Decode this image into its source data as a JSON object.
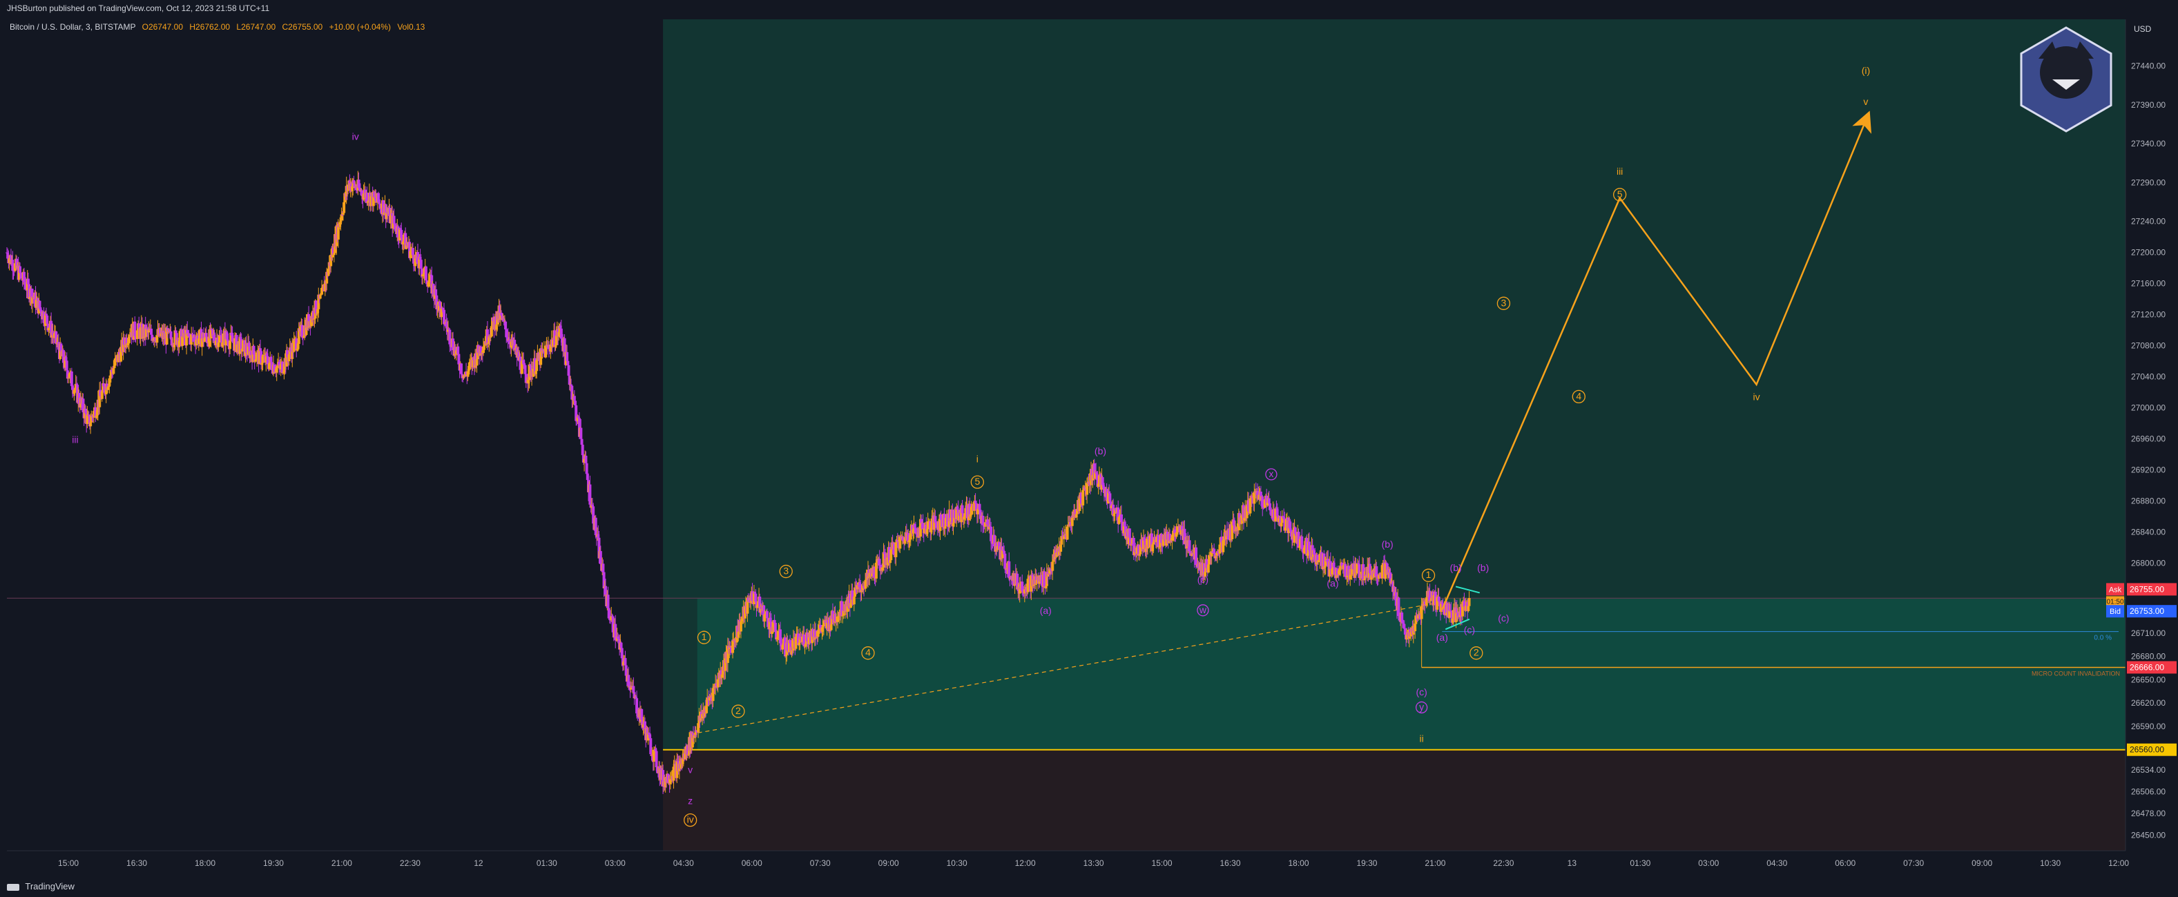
{
  "header": {
    "publisher": "JHSBurton published on TradingView.com, Oct 12, 2023 21:58 UTC+11"
  },
  "legend": {
    "symbol": "Bitcoin / U.S. Dollar, 3, BITSTAMP",
    "open": "O26747.00",
    "high": "H26762.00",
    "low": "L26747.00",
    "close": "C26755.00",
    "change": "+10.00 (+0.04%)",
    "volume": "Vol0.13"
  },
  "footer": {
    "brand": "TradingView"
  },
  "axis": {
    "currency": "USD",
    "ask_label": "Ask",
    "bid_label": "Bid",
    "ask_price": "26755.00",
    "bid_price": "26753.00",
    "countdown": "01:50",
    "stop_price": "26666.00",
    "support_price": "26560.00",
    "small_level_label": "0.0 %",
    "invalidation_label": "MICRO COUNT INVALIDATION"
  },
  "colors": {
    "background": "#131722",
    "bull_candle": "#f7a21b",
    "bear_candle": "#c239e6",
    "projection": "#f7a21b",
    "zone_top": "#123532",
    "zone_bottom": "#0f4a40",
    "zone_below": "#241c22",
    "ask": "#f23645",
    "bid": "#2962ff",
    "support_line": "#f7c600"
  },
  "chart_data": {
    "type": "candlestick",
    "symbol": "Bitcoin / U.S. Dollar",
    "interval": "3",
    "exchange": "BITSTAMP",
    "ylim": [
      26430,
      27500
    ],
    "y_ticks": [
      26450,
      26478,
      26506,
      26534,
      26560,
      26590,
      26620,
      26650,
      26680,
      26710,
      26740,
      26770,
      26800,
      26840,
      26880,
      26920,
      26960,
      27000,
      27040,
      27080,
      27120,
      27160,
      27200,
      27240,
      27290,
      27340,
      27390,
      27440
    ],
    "x_ticks": [
      "15:00",
      "16:30",
      "18:00",
      "19:30",
      "21:00",
      "22:30",
      "12",
      "01:30",
      "03:00",
      "04:30",
      "06:00",
      "07:30",
      "09:00",
      "10:30",
      "12:00",
      "13:30",
      "15:00",
      "16:30",
      "18:00",
      "19:30",
      "21:00",
      "22:30",
      "13",
      "01:30",
      "03:00",
      "04:30",
      "06:00",
      "07:30",
      "09:00",
      "10:30",
      "12:00"
    ],
    "price_path": [
      [
        0,
        27200
      ],
      [
        0.6,
        27110
      ],
      [
        1.2,
        26980
      ],
      [
        1.8,
        27100
      ],
      [
        2.4,
        27090
      ],
      [
        3.2,
        27090
      ],
      [
        4.0,
        27050
      ],
      [
        4.6,
        27140
      ],
      [
        5.0,
        27290
      ],
      [
        5.5,
        27260
      ],
      [
        6.2,
        27160
      ],
      [
        6.7,
        27040
      ],
      [
        7.2,
        27120
      ],
      [
        7.6,
        27040
      ],
      [
        8.1,
        27100
      ],
      [
        8.4,
        26960
      ],
      [
        8.8,
        26740
      ],
      [
        9.2,
        26620
      ],
      [
        9.6,
        26520
      ],
      [
        9.85,
        26540
      ],
      [
        10.4,
        26650
      ],
      [
        10.9,
        26760
      ],
      [
        11.4,
        26690
      ],
      [
        12.0,
        26720
      ],
      [
        12.6,
        26780
      ],
      [
        13.2,
        26840
      ],
      [
        14.2,
        26870
      ],
      [
        14.8,
        26770
      ],
      [
        15.2,
        26780
      ],
      [
        15.9,
        26920
      ],
      [
        16.5,
        26820
      ],
      [
        17.2,
        26840
      ],
      [
        17.5,
        26790
      ],
      [
        18.3,
        26890
      ],
      [
        18.9,
        26830
      ],
      [
        19.4,
        26790
      ],
      [
        20.2,
        26790
      ],
      [
        20.5,
        26700
      ],
      [
        20.8,
        26760
      ],
      [
        21.2,
        26730
      ],
      [
        21.4,
        26752
      ]
    ],
    "projection": {
      "x": [
        21.0,
        23.6,
        25.6,
        27.2
      ],
      "y": [
        26740,
        27270,
        27030,
        27370
      ]
    },
    "levels": {
      "current": 26755,
      "bid": 26753,
      "small_level": 26712,
      "invalidation": 26666,
      "support": 26560
    },
    "wave_labels_orange": [
      {
        "t": "iii",
        "x": 23.6,
        "y": 27300
      },
      {
        "t": "(i)",
        "x": 27.2,
        "y": 27430
      },
      {
        "t": "v",
        "x": 27.2,
        "y": 27390
      },
      {
        "t": "iv",
        "x": 25.6,
        "y": 27010
      },
      {
        "t": "i",
        "x": 14.2,
        "y": 26930
      },
      {
        "t": "ii",
        "x": 20.7,
        "y": 26570
      },
      {
        "t": "3",
        "x": 21.9,
        "y": 27130
      },
      {
        "t": "4",
        "x": 23.0,
        "y": 27010
      },
      {
        "t": "5",
        "x": 23.6,
        "y": 27270
      },
      {
        "t": "5",
        "x": 14.2,
        "y": 26900
      },
      {
        "t": "3",
        "x": 11.4,
        "y": 26785
      },
      {
        "t": "1",
        "x": 10.2,
        "y": 26700
      },
      {
        "t": "2",
        "x": 10.7,
        "y": 26605
      },
      {
        "t": "4",
        "x": 12.6,
        "y": 26680
      },
      {
        "t": "1",
        "x": 20.8,
        "y": 26780
      },
      {
        "t": "2",
        "x": 21.5,
        "y": 26680
      },
      {
        "t": "iv",
        "x": 10.0,
        "y": 26465
      }
    ],
    "wave_labels_purple": [
      {
        "t": "iv",
        "x": 5.1,
        "y": 27345
      },
      {
        "t": "iii",
        "x": 1.0,
        "y": 26955
      },
      {
        "t": "v",
        "x": 10.0,
        "y": 26530
      },
      {
        "t": "z",
        "x": 10.0,
        "y": 26490
      },
      {
        "t": "(a)",
        "x": 15.2,
        "y": 26735
      },
      {
        "t": "(b)",
        "x": 16.0,
        "y": 26940
      },
      {
        "t": "(c)",
        "x": 17.5,
        "y": 26775
      },
      {
        "t": "w",
        "x": 17.5,
        "y": 26735
      },
      {
        "t": "x",
        "x": 18.5,
        "y": 26910
      },
      {
        "t": "(a)",
        "x": 19.4,
        "y": 26770
      },
      {
        "t": "(b)",
        "x": 20.2,
        "y": 26820
      },
      {
        "t": "(c)",
        "x": 20.7,
        "y": 26630
      },
      {
        "t": "y",
        "x": 20.7,
        "y": 26610
      },
      {
        "t": "(a)",
        "x": 21.0,
        "y": 26700
      },
      {
        "t": "(b)",
        "x": 21.2,
        "y": 26790
      },
      {
        "t": "(c)",
        "x": 21.4,
        "y": 26710
      },
      {
        "t": "(b)",
        "x": 21.6,
        "y": 26790
      },
      {
        "t": "(c)",
        "x": 21.9,
        "y": 26725
      }
    ]
  }
}
